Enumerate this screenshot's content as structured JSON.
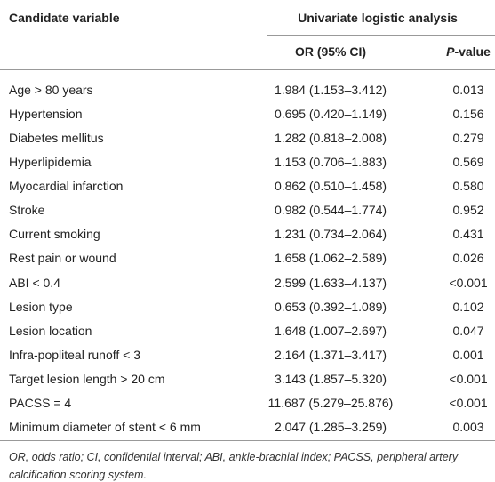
{
  "table": {
    "header": {
      "variable": "Candidate variable",
      "group": "Univariate logistic analysis",
      "or": "OR (95% CI)",
      "p": "P-value"
    },
    "rows": [
      [
        "Age > 80 years",
        "1.984 (1.153–3.412)",
        "0.013"
      ],
      [
        "Hypertension",
        "0.695 (0.420–1.149)",
        "0.156"
      ],
      [
        "Diabetes mellitus",
        "1.282 (0.818–2.008)",
        "0.279"
      ],
      [
        "Hyperlipidemia",
        "1.153 (0.706–1.883)",
        "0.569"
      ],
      [
        "Myocardial infarction",
        "0.862 (0.510–1.458)",
        "0.580"
      ],
      [
        "Stroke",
        "0.982 (0.544–1.774)",
        "0.952"
      ],
      [
        "Current smoking",
        "1.231 (0.734–2.064)",
        "0.431"
      ],
      [
        "Rest pain or wound",
        "1.658 (1.062–2.589)",
        "0.026"
      ],
      [
        "ABI < 0.4",
        "2.599 (1.633–4.137)",
        "<0.001"
      ],
      [
        "Lesion type",
        "0.653 (0.392–1.089)",
        "0.102"
      ],
      [
        "Lesion location",
        "1.648 (1.007–2.697)",
        "0.047"
      ],
      [
        "Infra-popliteal runoff < 3",
        "2.164 (1.371–3.417)",
        "0.001"
      ],
      [
        "Target lesion length > 20 cm",
        "3.143 (1.857–5.320)",
        "<0.001"
      ],
      [
        "PACSS = 4",
        "11.687 (5.279–25.876)",
        "<0.001"
      ],
      [
        "Minimum diameter of stent < 6 mm",
        "2.047 (1.285–3.259)",
        "0.003"
      ]
    ],
    "footnote": "OR, odds ratio; CI, confidential interval; ABI, ankle-brachial index; PACSS, peripheral artery calcification scoring system."
  }
}
